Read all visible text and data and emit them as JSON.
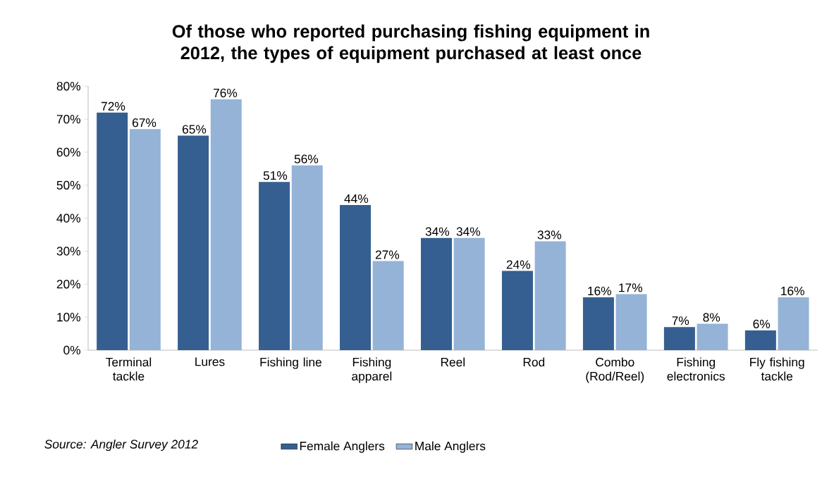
{
  "chart_data": {
    "type": "bar",
    "title": "Of those who reported purchasing fishing equipment in 2012, the types of equipment purchased at least once",
    "categories": [
      "Terminal tackle",
      "Lures",
      "Fishing line",
      "Fishing apparel",
      "Reel",
      "Rod",
      "Combo (Rod/Reel)",
      "Fishing electronics",
      "Fly fishing tackle"
    ],
    "series": [
      {
        "name": "Female Anglers",
        "color": "#355f91",
        "values": [
          72,
          65,
          51,
          44,
          34,
          24,
          16,
          7,
          6
        ],
        "value_labels": [
          "72%",
          "65%",
          "51%",
          "44%",
          "34%",
          "24%",
          "16%",
          "7%",
          "6%"
        ]
      },
      {
        "name": "Male Anglers",
        "color": "#95b3d7",
        "values": [
          67,
          76,
          56,
          27,
          34,
          33,
          17,
          8,
          16
        ],
        "value_labels": [
          "67%",
          "76%",
          "56%",
          "27%",
          "34%",
          "33%",
          "17%",
          "8%",
          "16%"
        ]
      }
    ],
    "ylim": [
      0,
      80
    ],
    "yticks": [
      {
        "value": 0,
        "label": "0%"
      },
      {
        "value": 10,
        "label": "10%"
      },
      {
        "value": 20,
        "label": "20%"
      },
      {
        "value": 30,
        "label": "30%"
      },
      {
        "value": 40,
        "label": "40%"
      },
      {
        "value": 50,
        "label": "50%"
      },
      {
        "value": 60,
        "label": "60%"
      },
      {
        "value": 70,
        "label": "70%"
      },
      {
        "value": 80,
        "label": "80%"
      }
    ],
    "legend": "bottom",
    "annotations": [
      "*Source: Angler Survey 2012*"
    ]
  }
}
